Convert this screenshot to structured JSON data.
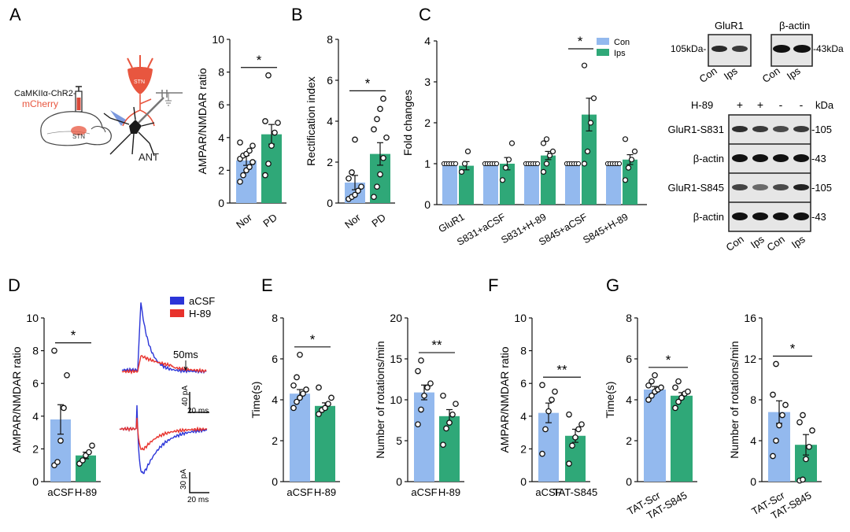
{
  "colors": {
    "con": "#93b9ee",
    "exp": "#2fa878",
    "acsf_trace": "#2b35d8",
    "h89_trace": "#e8322c",
    "star": "#111111",
    "stn": "#e8563f",
    "blot_bg": "#e6e6e6"
  },
  "panel_letters": [
    "A",
    "B",
    "C",
    "D",
    "E",
    "F",
    "G"
  ],
  "schematic": {
    "virus_label": "CaMKIIα-ChR2-",
    "reporter_label": "mCherry",
    "region_label": "STN",
    "stn_cell_label": "STN",
    "target_label": "ANT"
  },
  "legend_c": {
    "con": "Con",
    "exp": "Ips"
  },
  "traces": {
    "legend": [
      "aCSF",
      "H-89"
    ],
    "time_marker": "50ms",
    "scalebar_top_amp": "40 pA",
    "scalebar_top_time": "20 ms",
    "scalebar_bottom_amp": "30 pA",
    "scalebar_bottom_time": "20 ms"
  },
  "western": {
    "top_left_title": "GluR1",
    "top_right_title": "β-actin",
    "top_left_marker": "105kDa-",
    "top_right_marker": "-43kDa",
    "top_lane_labels": [
      "Con",
      "Ips"
    ],
    "h89_row_label": "H-89",
    "h89_signs": [
      "+",
      "+",
      "-",
      "-"
    ],
    "kda_label": "kDa",
    "rows": [
      {
        "label": "GluR1-S831",
        "marker": "-105"
      },
      {
        "label": "β-actin",
        "marker": "-43"
      },
      {
        "label": "GluR1-S845",
        "marker": "-105"
      },
      {
        "label": "β-actin",
        "marker": "-43"
      }
    ],
    "lane_labels": [
      "Con",
      "Ips",
      "Con",
      "Ips"
    ]
  },
  "chart_data": [
    {
      "id": "A",
      "type": "bar",
      "ylabel": "AMPAR/NMDAR ratio",
      "categories": [
        "Nor",
        "PD"
      ],
      "values": [
        2.6,
        4.2
      ],
      "sem": [
        0.3,
        0.6
      ],
      "ylim": [
        0,
        10
      ],
      "ticks": [
        0,
        2,
        4,
        6,
        8,
        10
      ],
      "points": [
        [
          1.3,
          1.7,
          2.0,
          2.2,
          2.5,
          2.7,
          2.9,
          3.0,
          3.2,
          3.5,
          3.7
        ],
        [
          1.7,
          2.4,
          3.5,
          4.3,
          4.9,
          5.0,
          7.8
        ]
      ],
      "significance": "*"
    },
    {
      "id": "B",
      "type": "bar",
      "ylabel": "Rectification index",
      "categories": [
        "Nor",
        "PD"
      ],
      "values": [
        1.0,
        2.4
      ],
      "sem": [
        0.35,
        0.55
      ],
      "ylim": [
        0,
        8
      ],
      "ticks": [
        0,
        2,
        4,
        6,
        8
      ],
      "points": [
        [
          0.2,
          0.3,
          0.4,
          0.6,
          0.8,
          1.2,
          1.5,
          3.1
        ],
        [
          0.3,
          0.8,
          1.4,
          2.2,
          3.2,
          3.6,
          4.1,
          4.6,
          5.1
        ]
      ],
      "significance": "*"
    },
    {
      "id": "C",
      "type": "bar",
      "ylabel": "Fold changes",
      "categories": [
        "GluR1",
        "S831+aCSF",
        "S831+H-89",
        "S845+aCSF",
        "S845+H-89"
      ],
      "series": [
        {
          "name": "Con",
          "values": [
            1,
            1,
            1,
            1,
            1
          ],
          "sem": [
            0,
            0,
            0,
            0,
            0
          ]
        },
        {
          "name": "Ips",
          "values": [
            0.95,
            1.0,
            1.2,
            2.2,
            1.1
          ],
          "sem": [
            0.1,
            0.15,
            0.1,
            0.4,
            0.12
          ]
        }
      ],
      "ylim": [
        0,
        4
      ],
      "ticks": [
        0,
        1,
        2,
        3,
        4
      ],
      "points_exp": [
        [
          0.8,
          1.0,
          1.3
        ],
        [
          0.6,
          0.9,
          1.1,
          1.5
        ],
        [
          0.8,
          1.0,
          1.2,
          1.3,
          1.5,
          1.6
        ],
        [
          1.0,
          1.3,
          2.0,
          2.6,
          3.4
        ],
        [
          0.6,
          0.9,
          1.1,
          1.3,
          1.6
        ]
      ],
      "significance": [
        null,
        null,
        null,
        "*",
        null
      ]
    },
    {
      "id": "D",
      "type": "bar",
      "ylabel": "AMPAR/NMDAR ratio",
      "categories": [
        "aCSF",
        "H-89"
      ],
      "values": [
        3.8,
        1.6
      ],
      "sem": [
        0.9,
        0.2
      ],
      "ylim": [
        0,
        10
      ],
      "ticks": [
        0,
        2,
        4,
        6,
        8,
        10
      ],
      "points": [
        [
          1.0,
          1.2,
          2.5,
          4.5,
          6.5,
          8.0
        ],
        [
          1.1,
          1.3,
          1.6,
          1.8,
          2.2
        ]
      ],
      "significance": "*"
    },
    {
      "id": "E1",
      "type": "bar",
      "ylabel": "Time(s)",
      "categories": [
        "aCSF",
        "H-89"
      ],
      "values": [
        4.3,
        3.7
      ],
      "sem": [
        0.2,
        0.15
      ],
      "ylim": [
        0,
        8
      ],
      "ticks": [
        0,
        2,
        4,
        6,
        8
      ],
      "points": [
        [
          3.6,
          3.9,
          4.1,
          4.3,
          4.5,
          4.7,
          5.1,
          6.2
        ],
        [
          3.3,
          3.5,
          3.6,
          3.8,
          4.1,
          4.6
        ]
      ],
      "significance": "*"
    },
    {
      "id": "E2",
      "type": "bar",
      "ylabel": "Number of rotations/min",
      "categories": [
        "aCSF",
        "H-89"
      ],
      "values": [
        10.9,
        8.0
      ],
      "sem": [
        0.9,
        0.8
      ],
      "ylim": [
        0,
        20
      ],
      "ticks": [
        0,
        5,
        10,
        15,
        20
      ],
      "points": [
        [
          7.0,
          8.8,
          10.5,
          11.5,
          12.0,
          13.5,
          14.8
        ],
        [
          4.5,
          6.5,
          7.2,
          8.2,
          9.5,
          10.5
        ]
      ],
      "significance": "**"
    },
    {
      "id": "F",
      "type": "bar",
      "ylabel": "AMPAR/NMDAR ratio",
      "categories": [
        "aCSF",
        "TAT-S845"
      ],
      "values": [
        4.2,
        2.8
      ],
      "sem": [
        0.6,
        0.4
      ],
      "ylim": [
        0,
        10
      ],
      "ticks": [
        0,
        2,
        4,
        6,
        8,
        10
      ],
      "points": [
        [
          1.7,
          3.2,
          4.3,
          5.0,
          5.5,
          5.9
        ],
        [
          1.1,
          2.2,
          2.7,
          3.2,
          3.5,
          4.1
        ]
      ],
      "significance": "**"
    },
    {
      "id": "G1",
      "type": "bar",
      "ylabel": "Time(s)",
      "categories": [
        "TAT-Scr",
        "TAT-S845"
      ],
      "values": [
        4.5,
        4.2
      ],
      "sem": [
        0.15,
        0.15
      ],
      "ylim": [
        0,
        8
      ],
      "ticks": [
        0,
        2,
        4,
        6,
        8
      ],
      "points": [
        [
          4.0,
          4.2,
          4.4,
          4.5,
          4.6,
          4.7,
          4.9,
          5.2
        ],
        [
          3.6,
          3.9,
          4.1,
          4.3,
          4.4,
          4.6,
          4.9
        ]
      ],
      "significance": "*"
    },
    {
      "id": "G2",
      "type": "bar",
      "ylabel": "Number of rotations/min",
      "categories": [
        "TAT-Scr",
        "TAT-S845"
      ],
      "values": [
        6.8,
        3.6
      ],
      "sem": [
        1.1,
        1.0
      ],
      "ylim": [
        0,
        16
      ],
      "ticks": [
        0,
        4,
        8,
        12,
        16
      ],
      "points": [
        [
          2.5,
          4.0,
          5.5,
          6.5,
          7.5,
          8.5,
          11.5
        ],
        [
          0.1,
          0.2,
          2.2,
          3.4,
          5.0,
          5.8,
          6.5
        ]
      ],
      "significance": "*"
    }
  ]
}
